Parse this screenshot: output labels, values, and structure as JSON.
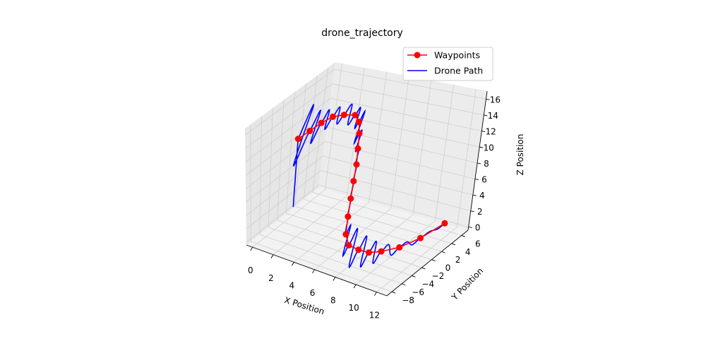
{
  "chart_data": {
    "type": "line3d",
    "title": "drone_trajectory",
    "xlabel": "X Position",
    "ylabel": "Y Position",
    "zlabel": "Z Position",
    "grid": true,
    "legend_position": "top-right",
    "xticks": [
      "0",
      "2",
      "4",
      "6",
      "8",
      "10",
      "12"
    ],
    "yticks": [
      "−8",
      "−6",
      "−4",
      "−2",
      "0",
      "2",
      "4",
      "6"
    ],
    "zticks": [
      "0",
      "2",
      "4",
      "6",
      "8",
      "10",
      "12",
      "14",
      "16"
    ],
    "xlim": [
      -0.6,
      13
    ],
    "ylim": [
      -9,
      7.3
    ],
    "zlim": [
      -0.4,
      17
    ],
    "series": [
      {
        "name": "Waypoints",
        "type": "line+marker",
        "color": "#ff0000",
        "points": [
          [
            0,
            0,
            10.5
          ],
          [
            1,
            0,
            12
          ],
          [
            2,
            0,
            13.5
          ],
          [
            3,
            0,
            14.7
          ],
          [
            4,
            0,
            15.3
          ],
          [
            5,
            0,
            15.6
          ],
          [
            5.6,
            -0.4,
            15.1
          ],
          [
            6,
            -1,
            14
          ],
          [
            6.2,
            -1.5,
            12.3
          ],
          [
            6.4,
            -2,
            10.5
          ],
          [
            6.5,
            -2.6,
            8.6
          ],
          [
            6.6,
            -3.2,
            6.6
          ],
          [
            6.7,
            -3.8,
            4.5
          ],
          [
            6.8,
            -4.3,
            2.4
          ],
          [
            7.2,
            -4.5,
            1.2
          ],
          [
            8,
            -4.2,
            0.8
          ],
          [
            8.8,
            -3.8,
            0.6
          ],
          [
            9.6,
            -3,
            0.7
          ],
          [
            10.6,
            -1.5,
            0.9
          ],
          [
            11.6,
            0.5,
            1.5
          ],
          [
            12.6,
            3,
            2.5
          ]
        ]
      },
      {
        "name": "Drone Path",
        "type": "line",
        "color": "#0000ff"
      }
    ]
  }
}
